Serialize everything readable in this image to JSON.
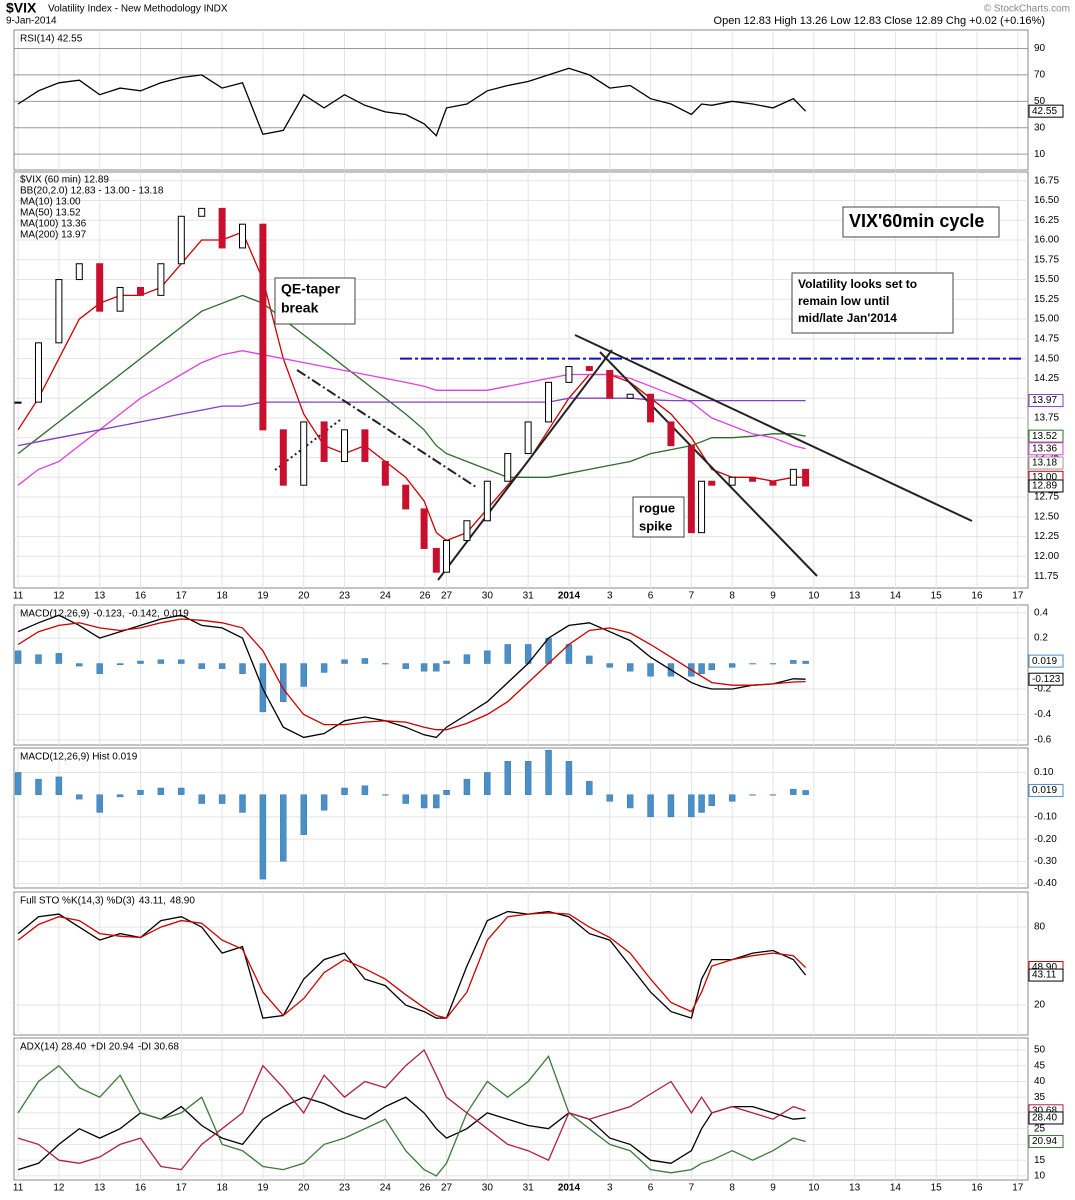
{
  "header": {
    "symbol": "$VIX",
    "name": "Volatility Index - New Methodology INDX",
    "date": "9-Jan-2014",
    "quote": "Open 12.83 High 13.26 Low 12.83 Close 12.89 Chg +0.02 (+0.16%)",
    "credit": "© StockCharts.com"
  },
  "chart_data": [
    {
      "type": "line",
      "xlim": [
        -0.1,
        24.75
      ],
      "ylim": [
        -2,
        104
      ],
      "yticks": [
        10,
        30,
        50,
        70,
        90
      ],
      "legend": [
        {
          "text": "RSI(14) 42.55",
          "color": "#000000"
        }
      ],
      "series": [
        {
          "color": "#000000",
          "values": [
            48,
            58,
            64,
            66,
            55,
            60,
            58,
            64,
            68,
            70,
            60,
            64,
            25,
            28,
            55,
            45,
            55,
            47,
            42,
            40,
            33,
            24,
            45,
            48,
            58,
            62,
            65,
            70,
            75,
            70,
            60,
            62,
            52,
            48,
            40,
            48,
            47,
            50,
            48,
            45,
            52,
            42.55
          ]
        }
      ],
      "tags": [
        {
          "value": 42.55,
          "color": "#000000"
        }
      ]
    },
    {
      "type": "candlestick",
      "title": "$VIX (60 min) 12.89",
      "bb_label": "BB(20,2.0) 12.83 - 13.00 - 13.18",
      "x": [
        0,
        0.5,
        1,
        1.5,
        2,
        2.5,
        3,
        3.5,
        4,
        4.5,
        5,
        5.5,
        6,
        6.5,
        7,
        7.5,
        8,
        8.5,
        9,
        9.5,
        9.95,
        10.25,
        10.5,
        11,
        11.5,
        12,
        12.5,
        13,
        13.5,
        14,
        14.5,
        15,
        15.5,
        16,
        16.5,
        16.75,
        17,
        17.5,
        18,
        18.5,
        19,
        19.3
      ],
      "xlim": [
        -0.1,
        24.75
      ],
      "xticks": [
        {
          "value": 0,
          "label": "11"
        },
        {
          "value": 1,
          "label": "12"
        },
        {
          "value": 2,
          "label": "13"
        },
        {
          "value": 3,
          "label": "16"
        },
        {
          "value": 4,
          "label": "17"
        },
        {
          "value": 5,
          "label": "18"
        },
        {
          "value": 6,
          "label": "19"
        },
        {
          "value": 7,
          "label": "20"
        },
        {
          "value": 8,
          "label": "23"
        },
        {
          "value": 9,
          "label": "24"
        },
        {
          "value": 9.97,
          "label": "26"
        },
        {
          "value": 10.5,
          "label": "27"
        },
        {
          "value": 11.5,
          "label": "30"
        },
        {
          "value": 12.5,
          "label": "31"
        },
        {
          "value": 13.5,
          "label": "2014"
        },
        {
          "value": 14.5,
          "label": "3"
        },
        {
          "value": 15.5,
          "label": "6"
        },
        {
          "value": 16.5,
          "label": "7"
        },
        {
          "value": 17.5,
          "label": "8"
        },
        {
          "value": 18.5,
          "label": "9"
        },
        {
          "value": 19.5,
          "label": "10"
        },
        {
          "value": 20.5,
          "label": "13"
        },
        {
          "value": 21.5,
          "label": "14"
        },
        {
          "value": 22.5,
          "label": "15"
        },
        {
          "value": 23.5,
          "label": "16"
        },
        {
          "value": 24.5,
          "label": "17"
        }
      ],
      "ylim": [
        11.6,
        16.86
      ],
      "yticks": [
        11.75,
        {
          "value": 12,
          "label": "12.00"
        },
        12.25,
        {
          "value": 12.5,
          "label": "12.50"
        },
        12.75,
        {
          "value": 13,
          "label": "13.00"
        },
        13.25,
        {
          "value": 13.5,
          "label": "13.50"
        },
        13.75,
        {
          "value": 14,
          "label": "14.00"
        },
        14.25,
        {
          "value": 14.5,
          "label": "14.50"
        },
        14.75,
        {
          "value": 15,
          "label": "15.00"
        },
        15.25,
        {
          "value": 15.5,
          "label": "15.50"
        },
        15.75,
        {
          "value": 16,
          "label": "16.00"
        },
        16.25,
        {
          "value": 16.5,
          "label": "16.50"
        },
        16.75
      ],
      "series": [
        {
          "color": "#c8102e",
          "values": [
            13.95,
            14.7,
            15.5,
            15.7,
            15.1,
            15.4,
            15.3,
            15.7,
            16.3,
            16.4,
            15.9,
            16.2,
            13.6,
            12.9,
            13.7,
            13.2,
            13.6,
            13.2,
            12.9,
            12.6,
            12.1,
            11.8,
            12.2,
            12.45,
            12.95,
            13.3,
            13.7,
            14.2,
            14.4,
            14.35,
            14.0,
            14.05,
            13.7,
            13.4,
            12.3,
            12.95,
            12.9,
            13.0,
            12.95,
            12.9,
            13.1,
            12.89
          ]
        },
        {
          "name": "MA(10) 13.00",
          "color": "#cc0000",
          "values": [
            13.6,
            14.0,
            14.5,
            15.0,
            15.2,
            15.3,
            15.3,
            15.4,
            15.7,
            16.0,
            16.0,
            16.1,
            15.5,
            14.5,
            13.8,
            13.4,
            13.3,
            13.4,
            13.2,
            13.0,
            12.7,
            12.3,
            12.2,
            12.3,
            12.6,
            12.9,
            13.2,
            13.6,
            14.0,
            14.3,
            14.3,
            14.2,
            14.0,
            13.8,
            13.5,
            13.3,
            13.1,
            13.0,
            13.0,
            12.95,
            13.0,
            13.0
          ]
        },
        {
          "name": "MA(50) 13.52",
          "color": "#2d6b2d",
          "values": [
            13.3,
            13.5,
            13.7,
            13.9,
            14.1,
            14.3,
            14.5,
            14.7,
            14.9,
            15.1,
            15.2,
            15.3,
            15.2,
            15.0,
            14.8,
            14.6,
            14.4,
            14.2,
            14.0,
            13.8,
            13.6,
            13.4,
            13.3,
            13.2,
            13.1,
            13.0,
            13.0,
            13.0,
            13.05,
            13.1,
            13.15,
            13.2,
            13.3,
            13.35,
            13.4,
            13.45,
            13.5,
            13.5,
            13.52,
            13.55,
            13.55,
            13.52
          ]
        },
        {
          "name": "MA(100) 13.36",
          "color": "#e040e0",
          "values": [
            12.9,
            13.1,
            13.2,
            13.4,
            13.6,
            13.8,
            14.0,
            14.15,
            14.3,
            14.45,
            14.55,
            14.6,
            14.55,
            14.5,
            14.45,
            14.4,
            14.35,
            14.3,
            14.25,
            14.2,
            14.15,
            14.1,
            14.1,
            14.1,
            14.1,
            14.15,
            14.2,
            14.25,
            14.3,
            14.3,
            14.3,
            14.25,
            14.15,
            14.05,
            13.95,
            13.85,
            13.75,
            13.65,
            13.55,
            13.5,
            13.4,
            13.36
          ]
        },
        {
          "name": "MA(200) 13.97",
          "color": "#8040c0",
          "values": [
            13.4,
            13.45,
            13.5,
            13.55,
            13.6,
            13.65,
            13.7,
            13.75,
            13.8,
            13.85,
            13.9,
            13.9,
            13.95,
            13.95,
            13.95,
            13.95,
            13.95,
            13.95,
            13.95,
            13.95,
            13.95,
            13.95,
            13.95,
            13.95,
            13.95,
            13.95,
            13.95,
            13.95,
            14.0,
            14.0,
            14.0,
            14.0,
            13.98,
            13.97,
            13.97,
            13.97,
            13.97,
            13.97,
            13.97,
            13.97,
            13.97,
            13.97
          ]
        }
      ],
      "resistance": 14.5,
      "annotations": [
        [
          "VIX'60min cycle"
        ],
        [
          "Volatility looks set to",
          "remain low until",
          "mid/late Jan'2014"
        ],
        [
          "QE-taper",
          "break"
        ],
        [
          "rogue",
          "spike"
        ]
      ],
      "tags": [
        {
          "value": 13.97,
          "color": "#8040c0"
        },
        {
          "value": 13.52,
          "color": "#2d6b2d"
        },
        {
          "value": 13.36,
          "color": "#e040e0"
        },
        {
          "value": 13.18,
          "color": "#999999"
        },
        {
          "value": 13,
          "label": "13.00",
          "color": "#cc0000"
        },
        {
          "value": 12.89,
          "color": "#000000"
        }
      ]
    },
    {
      "type": "macd",
      "xlim": [
        -0.1,
        24.75
      ],
      "ylim": [
        -0.64,
        0.46
      ],
      "yticks": [
        0.4,
        0.2,
        -0.2,
        -0.4,
        -0.6
      ],
      "legend": [
        {
          "text": "MACD(12,26,9)",
          "color": "#000000"
        },
        {
          "text": "-0.123,",
          "color": "#000000"
        },
        {
          "text": "-0.142,",
          "color": "#cc0000"
        },
        {
          "text": "0.019",
          "color": "#4a8fc8"
        }
      ],
      "series": [
        {
          "color": "#000000",
          "values": [
            0.25,
            0.32,
            0.38,
            0.3,
            0.2,
            0.25,
            0.3,
            0.35,
            0.38,
            0.3,
            0.28,
            0.2,
            -0.2,
            -0.5,
            -0.58,
            -0.55,
            -0.45,
            -0.42,
            -0.45,
            -0.5,
            -0.56,
            -0.58,
            -0.5,
            -0.4,
            -0.3,
            -0.15,
            0,
            0.2,
            0.3,
            0.32,
            0.25,
            0.18,
            0.05,
            -0.05,
            -0.15,
            -0.18,
            -0.2,
            -0.2,
            -0.17,
            -0.16,
            -0.12,
            -0.123
          ]
        },
        {
          "color": "#cc0000",
          "values": [
            0.15,
            0.25,
            0.3,
            0.32,
            0.28,
            0.26,
            0.28,
            0.32,
            0.35,
            0.34,
            0.32,
            0.28,
            0.1,
            -0.2,
            -0.4,
            -0.48,
            -0.48,
            -0.46,
            -0.45,
            -0.46,
            -0.5,
            -0.52,
            -0.52,
            -0.47,
            -0.4,
            -0.3,
            -0.15,
            0,
            0.15,
            0.26,
            0.28,
            0.24,
            0.15,
            0.05,
            -0.05,
            -0.1,
            -0.15,
            -0.17,
            -0.17,
            -0.16,
            -0.145,
            -0.142
          ]
        }
      ],
      "tags": [
        {
          "value": 0.019,
          "color": "#4a8fc8"
        },
        {
          "value": -0.123,
          "color": "#000000"
        }
      ]
    },
    {
      "type": "histogram",
      "xlim": [
        -0.1,
        24.75
      ],
      "ylim": [
        -0.42,
        0.21
      ],
      "yticks": [
        {
          "value": 0.1,
          "label": "0.10"
        },
        {
          "value": -0.1,
          "label": "-0.10"
        },
        {
          "value": -0.2,
          "label": "-0.20"
        },
        {
          "value": -0.3,
          "label": "-0.30"
        },
        {
          "value": -0.4,
          "label": "-0.40"
        }
      ],
      "legend": [
        {
          "text": "MACD(12,26,9) Hist 0.019",
          "color": "#000000"
        }
      ],
      "color": "#4a8fc8",
      "values": [
        0.1,
        0.07,
        0.08,
        -0.02,
        -0.08,
        -0.01,
        0.02,
        0.03,
        0.03,
        -0.04,
        -0.04,
        -0.08,
        -0.38,
        -0.3,
        -0.18,
        -0.07,
        0.03,
        0.04,
        0,
        -0.04,
        -0.06,
        -0.06,
        0.02,
        0.07,
        0.1,
        0.15,
        0.15,
        0.2,
        0.15,
        0.06,
        -0.03,
        -0.06,
        -0.1,
        -0.1,
        -0.1,
        -0.08,
        -0.05,
        -0.03,
        0,
        0,
        0.025,
        0.019
      ],
      "tags": [
        {
          "value": 0.019,
          "color": "#4a8fc8"
        }
      ]
    },
    {
      "type": "line",
      "xlim": [
        -0.1,
        24.75
      ],
      "ylim": [
        -3,
        107
      ],
      "yticks": [
        80,
        20
      ],
      "legend": [
        {
          "text": "Full STO %K(14,3) %D(3)",
          "color": "#000000"
        },
        {
          "text": "43.11,",
          "color": "#000000"
        },
        {
          "text": "48.90",
          "color": "#cc0000"
        }
      ],
      "series": [
        {
          "color": "#000000",
          "values": [
            75,
            88,
            90,
            80,
            70,
            75,
            72,
            85,
            88,
            80,
            60,
            65,
            10,
            12,
            40,
            55,
            60,
            40,
            35,
            20,
            15,
            10,
            10,
            50,
            85,
            92,
            90,
            92,
            88,
            75,
            70,
            50,
            30,
            15,
            10,
            40,
            55,
            55,
            60,
            62,
            55,
            43.11
          ]
        },
        {
          "color": "#cc0000",
          "values": [
            70,
            82,
            88,
            85,
            75,
            73,
            72,
            80,
            85,
            83,
            70,
            63,
            30,
            12,
            25,
            45,
            55,
            48,
            40,
            28,
            18,
            12,
            10,
            30,
            70,
            88,
            90,
            91,
            90,
            80,
            72,
            60,
            40,
            22,
            15,
            30,
            50,
            55,
            58,
            60,
            58,
            48.9
          ]
        }
      ],
      "tags": [
        {
          "value": 48.9,
          "label": "48.90",
          "color": "#cc0000"
        },
        {
          "value": 43.11,
          "color": "#000000"
        }
      ]
    },
    {
      "type": "line",
      "xlim": [
        -0.1,
        24.75
      ],
      "ylim": [
        8.7,
        53.8
      ],
      "yticks": [
        10,
        15,
        20,
        25,
        30,
        35,
        40,
        45,
        50
      ],
      "legend": [
        {
          "text": "ADX(14) 28.40",
          "color": "#000000"
        },
        {
          "text": "+DI 20.94",
          "color": "#3a7a3a"
        },
        {
          "text": "-DI 30.68",
          "color": "#b02040"
        }
      ],
      "series": [
        {
          "color": "#000000",
          "values": [
            12,
            14,
            20,
            25,
            22,
            25,
            30,
            28,
            32,
            26,
            22,
            20,
            28,
            32,
            35,
            33,
            30,
            28,
            32,
            35,
            30,
            25,
            22,
            25,
            30,
            28,
            26,
            25,
            30,
            28,
            22,
            20,
            15,
            14,
            18,
            25,
            30,
            32,
            32,
            30,
            28,
            28.4
          ]
        },
        {
          "color": "#3a7a3a",
          "values": [
            30,
            40,
            45,
            38,
            35,
            42,
            30,
            28,
            30,
            35,
            20,
            18,
            13,
            12,
            14,
            20,
            22,
            25,
            28,
            18,
            12,
            10,
            14,
            30,
            40,
            35,
            40,
            48,
            30,
            25,
            20,
            18,
            12,
            11,
            12,
            14,
            15,
            18,
            15,
            18,
            22,
            20.94
          ]
        },
        {
          "color": "#b02040",
          "values": [
            22,
            20,
            15,
            14,
            16,
            20,
            22,
            13,
            12,
            20,
            25,
            30,
            45,
            38,
            30,
            42,
            35,
            40,
            38,
            45,
            50,
            42,
            35,
            30,
            25,
            20,
            18,
            15,
            30,
            28,
            30,
            32,
            36,
            40,
            30,
            35,
            30,
            32,
            30,
            28,
            32,
            30.68
          ]
        }
      ],
      "tags": [
        {
          "value": 30.68,
          "color": "#b02040"
        },
        {
          "value": 28.4,
          "label": "28.40",
          "color": "#000000"
        },
        {
          "value": 20.94,
          "color": "#3a7a3a"
        }
      ]
    }
  ]
}
